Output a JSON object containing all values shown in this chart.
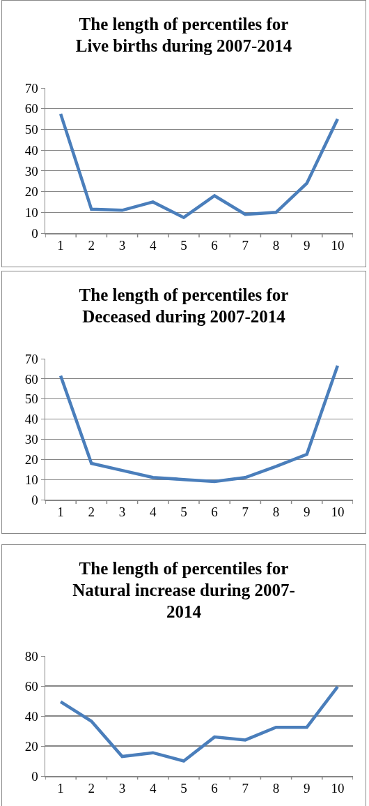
{
  "chart_data": [
    {
      "type": "line",
      "title": "The length of percentiles for Live births during 2007-2014",
      "categories": [
        "1",
        "2",
        "3",
        "4",
        "5",
        "6",
        "7",
        "8",
        "9",
        "10"
      ],
      "series": [
        {
          "color": "#4a7ebb",
          "values": [
            57.5,
            11.5,
            11,
            15,
            7.5,
            18,
            9,
            10,
            24,
            55
          ]
        }
      ],
      "ylim": [
        0,
        70
      ],
      "yticks": [
        0,
        10,
        20,
        30,
        40,
        50,
        60,
        70
      ],
      "grid": "y",
      "marker": "none",
      "line_style": "solid"
    },
    {
      "type": "line",
      "title": "The length of percentiles for Deceased during 2007-2014",
      "categories": [
        "1",
        "2",
        "3",
        "4",
        "5",
        "6",
        "7",
        "8",
        "9",
        "10"
      ],
      "series": [
        {
          "color": "#4a7ebb",
          "values": [
            61.5,
            18,
            14.5,
            11,
            10,
            9,
            11,
            16.5,
            22.5,
            66.5
          ]
        }
      ],
      "ylim": [
        0,
        70
      ],
      "yticks": [
        0,
        10,
        20,
        30,
        40,
        50,
        60,
        70
      ],
      "grid": "y",
      "marker": "none",
      "line_style": "solid"
    },
    {
      "type": "line",
      "title": "The length of percentiles for Natural increase during 2007-2014",
      "categories": [
        "1",
        "2",
        "3",
        "4",
        "5",
        "6",
        "7",
        "8",
        "9",
        "10"
      ],
      "series": [
        {
          "color": "#4a7ebb",
          "values": [
            49.5,
            36.5,
            13,
            15.5,
            10,
            26,
            24,
            32.5,
            32.5,
            59.5
          ]
        }
      ],
      "ylim": [
        0,
        80
      ],
      "yticks": [
        0,
        20,
        40,
        60,
        80
      ],
      "grid": "y",
      "marker": "none",
      "line_style": "solid"
    }
  ]
}
